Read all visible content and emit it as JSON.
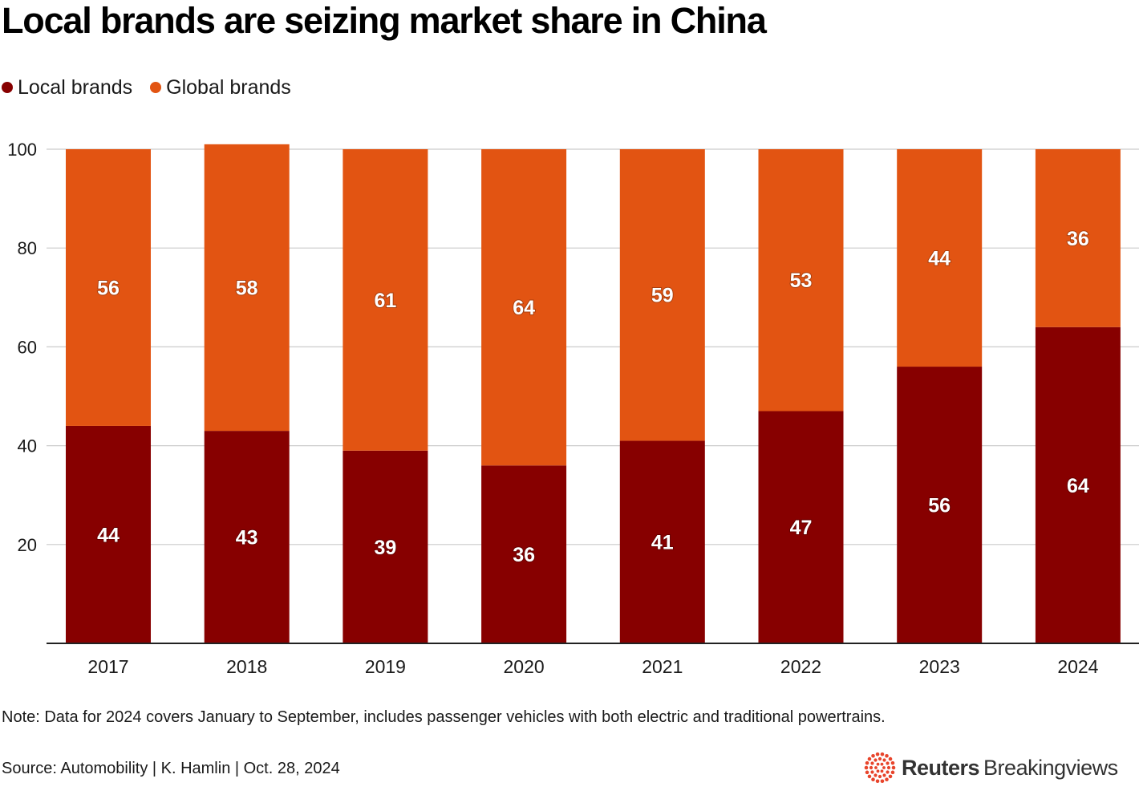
{
  "title": "Local brands are seizing market share in China",
  "legend": [
    {
      "label": "Local brands",
      "color": "#870000"
    },
    {
      "label": "Global brands",
      "color": "#e25412"
    }
  ],
  "chart_data": {
    "type": "bar",
    "stacked": true,
    "categories": [
      "2017",
      "2018",
      "2019",
      "2020",
      "2021",
      "2022",
      "2023",
      "2024"
    ],
    "series": [
      {
        "name": "Local brands",
        "color": "#870000",
        "values": [
          44,
          43,
          39,
          36,
          41,
          47,
          56,
          64
        ]
      },
      {
        "name": "Global brands",
        "color": "#e25412",
        "values": [
          56,
          58,
          61,
          64,
          59,
          53,
          44,
          36
        ]
      }
    ],
    "yticks": [
      20,
      40,
      60,
      80,
      100
    ],
    "ylim": [
      0,
      100
    ],
    "grid": true,
    "xlabel": "",
    "ylabel": ""
  },
  "note": "Note: Data for 2024 covers January to September, includes passenger vehicles with both electric and traditional powertrains.",
  "source": "Source: Automobility | K. Hamlin | Oct. 28, 2024",
  "brand": {
    "bold": "Reuters",
    "light": "Breakingviews"
  }
}
